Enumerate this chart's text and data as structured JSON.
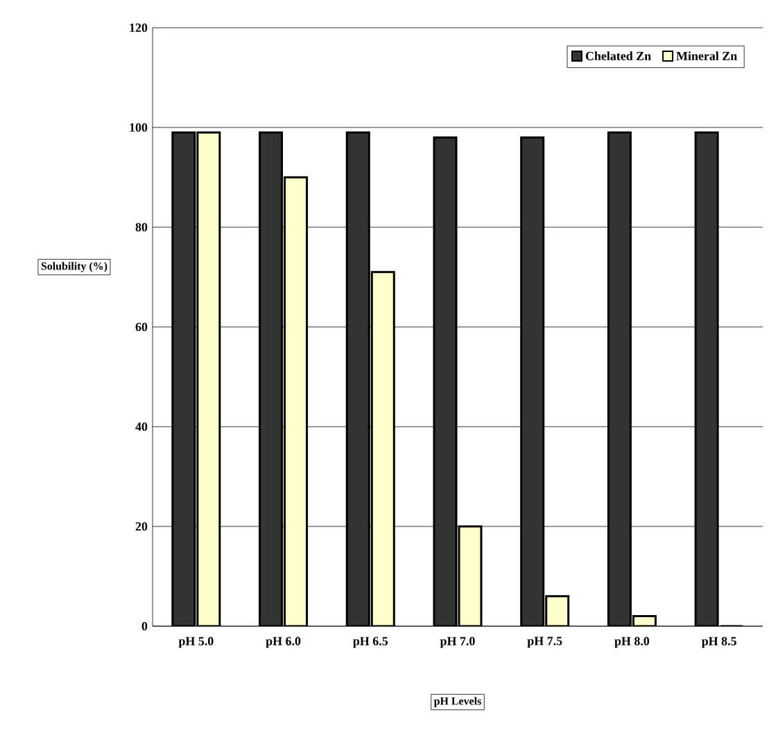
{
  "chart_data": {
    "type": "bar",
    "xlabel": "pH Levels",
    "ylabel": "Solubility (%)",
    "categories": [
      "pH 5.0",
      "pH 6.0",
      "pH 6.5",
      "pH 7.0",
      "pH 7.5",
      "pH 8.0",
      "pH 8.5"
    ],
    "series": [
      {
        "name": "Chelated Zn",
        "color": "#333333",
        "values": [
          99,
          99,
          99,
          98,
          98,
          99,
          99
        ]
      },
      {
        "name": "Mineral Zn",
        "color": "#ffffcc",
        "values": [
          99,
          90,
          71,
          20,
          6,
          2,
          0
        ]
      }
    ],
    "ylim": [
      0,
      120
    ],
    "yticks": [
      0,
      20,
      40,
      60,
      80,
      100,
      120
    ],
    "grid": "y",
    "legend": "top right"
  }
}
